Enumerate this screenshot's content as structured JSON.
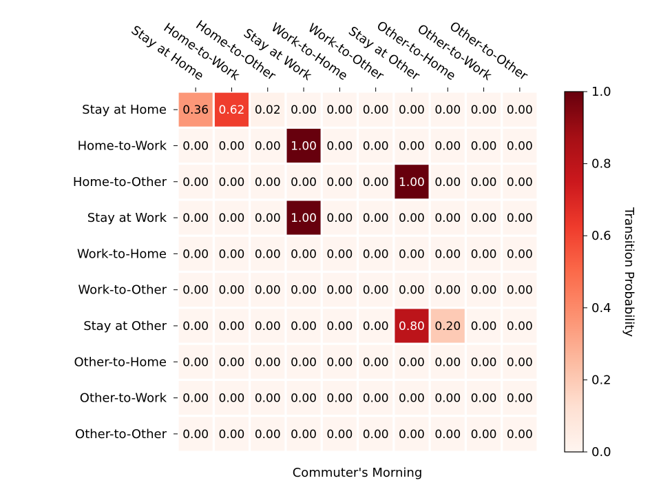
{
  "chart_data": {
    "type": "heatmap",
    "title": "",
    "xlabel": "Commuter's Morning",
    "ylabel": "",
    "row_labels": [
      "Stay at Home",
      "Home-to-Work",
      "Home-to-Other",
      "Stay at Work",
      "Work-to-Home",
      "Work-to-Other",
      "Stay at Other",
      "Other-to-Home",
      "Other-to-Work",
      "Other-to-Other"
    ],
    "col_labels": [
      "Stay at Home",
      "Home-to-Work",
      "Home-to-Other",
      "Stay at Work",
      "Work-to-Home",
      "Work-to-Other",
      "Stay at Other",
      "Other-to-Home",
      "Other-to-Work",
      "Other-to-Other"
    ],
    "values": [
      [
        0.36,
        0.62,
        0.02,
        0.0,
        0.0,
        0.0,
        0.0,
        0.0,
        0.0,
        0.0
      ],
      [
        0.0,
        0.0,
        0.0,
        1.0,
        0.0,
        0.0,
        0.0,
        0.0,
        0.0,
        0.0
      ],
      [
        0.0,
        0.0,
        0.0,
        0.0,
        0.0,
        0.0,
        1.0,
        0.0,
        0.0,
        0.0
      ],
      [
        0.0,
        0.0,
        0.0,
        1.0,
        0.0,
        0.0,
        0.0,
        0.0,
        0.0,
        0.0
      ],
      [
        0.0,
        0.0,
        0.0,
        0.0,
        0.0,
        0.0,
        0.0,
        0.0,
        0.0,
        0.0
      ],
      [
        0.0,
        0.0,
        0.0,
        0.0,
        0.0,
        0.0,
        0.0,
        0.0,
        0.0,
        0.0
      ],
      [
        0.0,
        0.0,
        0.0,
        0.0,
        0.0,
        0.0,
        0.8,
        0.2,
        0.0,
        0.0
      ],
      [
        0.0,
        0.0,
        0.0,
        0.0,
        0.0,
        0.0,
        0.0,
        0.0,
        0.0,
        0.0
      ],
      [
        0.0,
        0.0,
        0.0,
        0.0,
        0.0,
        0.0,
        0.0,
        0.0,
        0.0,
        0.0
      ],
      [
        0.0,
        0.0,
        0.0,
        0.0,
        0.0,
        0.0,
        0.0,
        0.0,
        0.0,
        0.0
      ]
    ],
    "value_format": "0.00",
    "colormap": "Reds",
    "colormap_stops": [
      "#fff5f0",
      "#fee0d2",
      "#fcbba1",
      "#fc9272",
      "#fb6a4a",
      "#ef3b2c",
      "#cb181d",
      "#a50f15",
      "#67000d"
    ],
    "vmin": 0.0,
    "vmax": 1.0,
    "colorbar": {
      "label": "Transition Probability",
      "ticks": [
        0.0,
        0.2,
        0.4,
        0.6,
        0.8,
        1.0
      ],
      "tick_labels": [
        "0.0",
        "0.2",
        "0.4",
        "0.6",
        "0.8",
        "1.0"
      ],
      "position": "right"
    },
    "grid": false,
    "cell_border_color": "#ffffff",
    "text_color_dark": "#000000",
    "text_color_light": "#ffffff",
    "x_tick_position": "top"
  }
}
